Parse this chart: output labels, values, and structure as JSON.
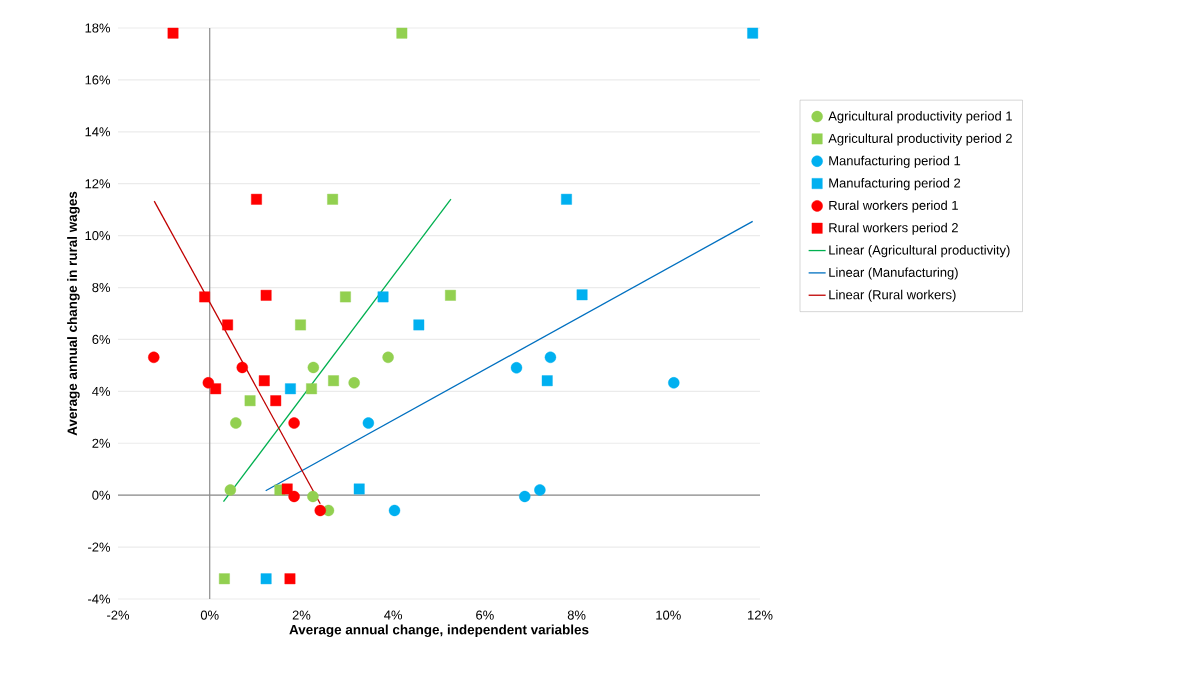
{
  "chart_data": {
    "type": "scatter",
    "xlabel": "Average annual change, independent variables",
    "ylabel": "Average annual change in rural wages",
    "xlim": [
      -2,
      12
    ],
    "ylim": [
      -4,
      18
    ],
    "xticks": [
      {
        "value": -2,
        "label": "-2%"
      },
      {
        "value": 0,
        "label": "0%"
      },
      {
        "value": 2,
        "label": "2%"
      },
      {
        "value": 4,
        "label": "4%"
      },
      {
        "value": 6,
        "label": "6%"
      },
      {
        "value": 8,
        "label": "8%"
      },
      {
        "value": 10,
        "label": "10%"
      },
      {
        "value": 12,
        "label": "12%"
      }
    ],
    "yticks": [
      {
        "value": -4,
        "label": "-4%"
      },
      {
        "value": -2,
        "label": "-2%"
      },
      {
        "value": 0,
        "label": "0%"
      },
      {
        "value": 2,
        "label": "2%"
      },
      {
        "value": 4,
        "label": "4%"
      },
      {
        "value": 6,
        "label": "6%"
      },
      {
        "value": 8,
        "label": "8%"
      },
      {
        "value": 10,
        "label": "10%"
      },
      {
        "value": 12,
        "label": "12%"
      },
      {
        "value": 14,
        "label": "14%"
      },
      {
        "value": 16,
        "label": "16%"
      },
      {
        "value": 18,
        "label": "18%"
      }
    ],
    "grid": "y",
    "legend": "right",
    "ref_lines": [
      {
        "axis": "x",
        "value": 0,
        "color": "#8c8c8c"
      }
    ],
    "series": [
      {
        "name": "Agricultural productivity period 1",
        "color": "#92d050",
        "marker": "circle",
        "x": [
          0.45,
          0.57,
          2.26,
          2.25,
          2.59,
          3.15,
          3.89
        ],
        "values": [
          0.2,
          2.78,
          4.92,
          -0.05,
          -0.59,
          4.33,
          5.31
        ]
      },
      {
        "name": "Agricultural productivity period 2",
        "color": "#92d050",
        "marker": "square",
        "x": [
          4.19,
          2.68,
          2.96,
          5.25,
          1.98,
          2.22,
          2.7,
          0.88,
          1.53,
          0.32
        ],
        "values": [
          17.8,
          11.4,
          7.64,
          7.7,
          6.56,
          4.1,
          4.41,
          3.64,
          0.2,
          -3.22
        ]
      },
      {
        "name": "Manufacturing period 1",
        "color": "#00b0f0",
        "marker": "circle",
        "x": [
          3.46,
          6.69,
          7.43,
          10.12,
          6.87,
          7.2,
          4.03
        ],
        "values": [
          2.78,
          4.91,
          5.31,
          4.33,
          -0.05,
          0.2,
          -0.59
        ]
      },
      {
        "name": "Manufacturing period 2",
        "color": "#00b0f0",
        "marker": "square",
        "x": [
          11.84,
          7.78,
          3.78,
          8.12,
          4.56,
          1.76,
          7.36,
          3.26,
          1.23
        ],
        "values": [
          17.8,
          11.4,
          7.64,
          7.72,
          6.56,
          4.1,
          4.41,
          0.24,
          -3.22
        ]
      },
      {
        "name": "Rural workers period 1",
        "color": "#ff0000",
        "marker": "circle",
        "x": [
          -1.22,
          0.71,
          -0.03,
          1.84,
          1.84,
          2.41
        ],
        "values": [
          5.31,
          4.92,
          4.33,
          2.78,
          -0.05,
          -0.59
        ]
      },
      {
        "name": "Rural workers period 2",
        "color": "#ff0000",
        "marker": "square",
        "x": [
          -0.8,
          1.02,
          -0.11,
          1.23,
          0.39,
          0.13,
          1.19,
          1.44,
          1.69,
          1.75
        ],
        "values": [
          17.8,
          11.4,
          7.64,
          7.7,
          6.56,
          4.1,
          4.41,
          3.64,
          0.24,
          -3.22
        ]
      },
      {
        "name": "Linear (Agricultural productivity)",
        "type": "line",
        "color": "#00b050",
        "marker": "none",
        "x": [
          0.3,
          5.26
        ],
        "values": [
          -0.25,
          11.41
        ]
      },
      {
        "name": "Linear (Manufacturing)",
        "type": "line",
        "color": "#0070c0",
        "marker": "none",
        "x": [
          1.22,
          11.84
        ],
        "values": [
          0.17,
          10.55
        ]
      },
      {
        "name": "Linear (Rural workers)",
        "type": "line",
        "color": "#c00000",
        "marker": "none",
        "x": [
          -1.21,
          2.41
        ],
        "values": [
          11.33,
          -0.33
        ]
      }
    ]
  }
}
